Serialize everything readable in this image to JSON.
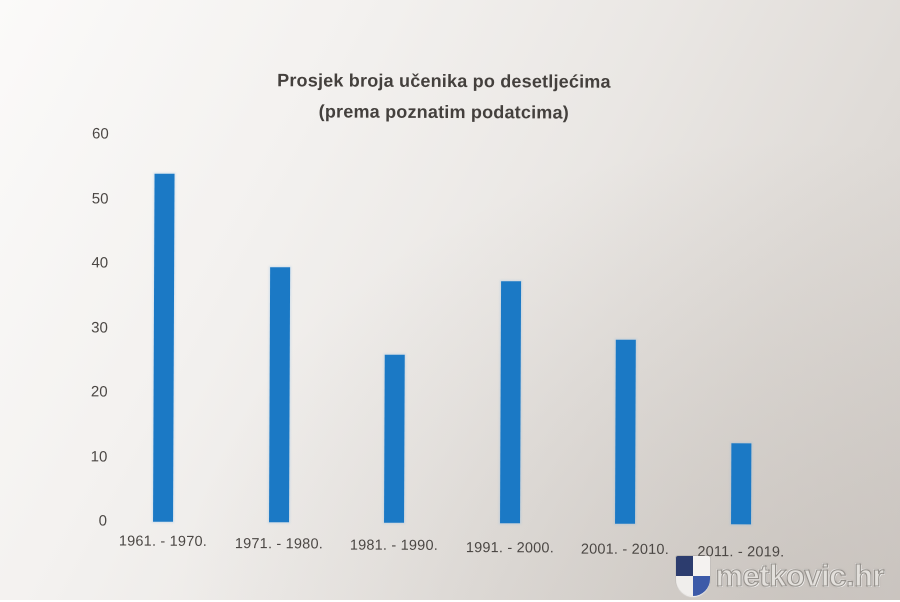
{
  "title": {
    "line1": "Prosjek broja učenika po desetljećima",
    "line2": "(prema poznatim podatcima)"
  },
  "chart_data": {
    "type": "bar",
    "title": "Prosjek broja učenika po desetljećima (prema poznatim podatcima)",
    "categories": [
      "1961. - 1970.",
      "1971. - 1980.",
      "1981. - 1990.",
      "1991. - 2000.",
      "2001. - 2010.",
      "2011. - 2019."
    ],
    "values": [
      54,
      39.5,
      26,
      37.5,
      28.5,
      12.5
    ],
    "xlabel": "",
    "ylabel": "",
    "ylim": [
      0,
      60
    ],
    "yticks": [
      0,
      10,
      20,
      30,
      40,
      50,
      60
    ],
    "grid": false,
    "legend": null,
    "bar_color": "#1b79c5"
  },
  "watermark": {
    "text": "metkovic.hr",
    "logo": "checkered-shield-icon",
    "logo_colors": {
      "navy": "#2c3c6e",
      "blue": "#3c5aa8",
      "white": "#f4f2f0"
    }
  },
  "colors": {
    "background_light": "#fbfaf9",
    "background_dark": "#d6d1cd",
    "text": "#4b4744",
    "bar": "#1b79c5"
  }
}
